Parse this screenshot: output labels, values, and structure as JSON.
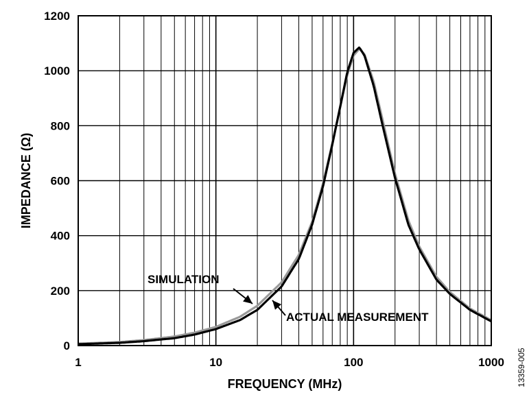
{
  "chart_data": {
    "type": "line",
    "xlabel": "FREQUENCY (MHz)",
    "ylabel": "IMPEDANCE (Ω)",
    "xscale": "log",
    "xlim": [
      1,
      1000
    ],
    "ylim": [
      0,
      1200
    ],
    "grid": true,
    "x_ticks": [
      "1",
      "10",
      "100",
      "1000"
    ],
    "y_ticks": [
      "0",
      "200",
      "400",
      "600",
      "800",
      "1000",
      "1200"
    ],
    "series": [
      {
        "name": "SIMULATION",
        "color": "#999999",
        "x": [
          1,
          2,
          3,
          5,
          7,
          10,
          15,
          20,
          30,
          40,
          50,
          60,
          70,
          80,
          90,
          100,
          110,
          120,
          140,
          160,
          200,
          250,
          300,
          400,
          500,
          700,
          1000
        ],
        "y": [
          7,
          13,
          20,
          33,
          47,
          68,
          105,
          145,
          230,
          330,
          450,
          590,
          735,
          870,
          985,
          1055,
          1080,
          1060,
          960,
          835,
          625,
          455,
          360,
          250,
          195,
          135,
          92
        ]
      },
      {
        "name": "ACTUAL MEASUREMENT",
        "color": "#000000",
        "x": [
          1,
          2,
          3,
          5,
          7,
          10,
          15,
          20,
          30,
          40,
          50,
          60,
          70,
          80,
          90,
          100,
          110,
          120,
          140,
          160,
          200,
          250,
          300,
          400,
          500,
          700,
          1000
        ],
        "y": [
          5,
          10,
          16,
          27,
          40,
          60,
          93,
          130,
          215,
          315,
          440,
          580,
          730,
          870,
          995,
          1065,
          1085,
          1055,
          945,
          815,
          610,
          440,
          350,
          240,
          188,
          130,
          88
        ]
      }
    ],
    "annotations": [
      "SIMULATION",
      "ACTUAL MEASUREMENT"
    ],
    "figure_id": "13359-005"
  }
}
